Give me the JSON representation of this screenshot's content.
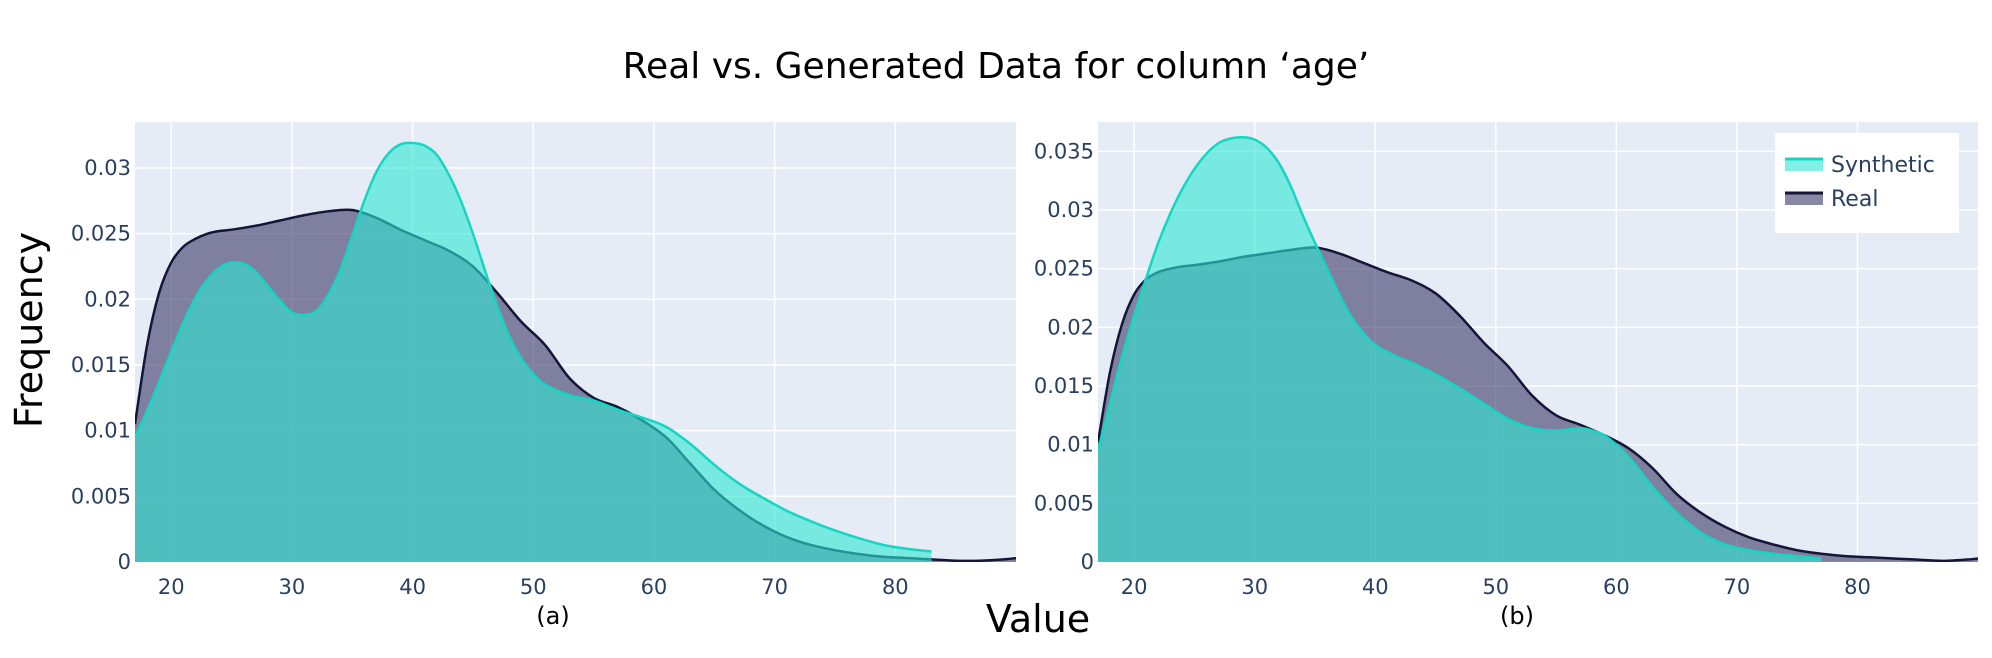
{
  "figure": {
    "title": "Real vs. Generated Data for column ‘age’",
    "ylabel": "Frequency",
    "xlabel": "Value",
    "colors": {
      "synthetic_fill": "#2ee8d4",
      "synthetic_line": "#14d6c2",
      "real_fill": "#3b3868",
      "real_line": "#15153a",
      "plot_bg": "#e5ecf6"
    }
  },
  "chart_data": [
    {
      "type": "area",
      "panel_label": "(a)",
      "xlim": [
        17,
        90
      ],
      "ylim": [
        0,
        0.0335
      ],
      "x_ticks": [
        20,
        30,
        40,
        50,
        60,
        70,
        80
      ],
      "x_tick_labels": [
        "20",
        "30",
        "40",
        "50",
        "60",
        "70",
        "80"
      ],
      "y_ticks": [
        0,
        0.005,
        0.01,
        0.015,
        0.02,
        0.025,
        0.03
      ],
      "y_tick_labels": [
        "0",
        "0.005",
        "0.01",
        "0.015",
        "0.02",
        "0.025",
        "0.03"
      ],
      "legend": false,
      "grid": true,
      "series": [
        {
          "name": "Real",
          "x": [
            17,
            18,
            19,
            20,
            21,
            22,
            23,
            24,
            25,
            27,
            29,
            31,
            33,
            35,
            37,
            39,
            41,
            43,
            45,
            47,
            49,
            51,
            53,
            55,
            57,
            59,
            61,
            63,
            65,
            67,
            69,
            71,
            73,
            75,
            77,
            79,
            81,
            83,
            85,
            87,
            89,
            90
          ],
          "y": [
            0.0105,
            0.0165,
            0.0205,
            0.0228,
            0.024,
            0.0246,
            0.025,
            0.0252,
            0.0253,
            0.0256,
            0.026,
            0.0264,
            0.0267,
            0.0268,
            0.0262,
            0.0253,
            0.0245,
            0.0237,
            0.0225,
            0.0205,
            0.0183,
            0.0165,
            0.014,
            0.0125,
            0.0118,
            0.0108,
            0.0095,
            0.0075,
            0.0055,
            0.004,
            0.0028,
            0.0019,
            0.0013,
            0.0009,
            0.0006,
            0.0004,
            0.0003,
            0.0002,
            0.0001,
            0.0001,
            0.0002,
            0.0003
          ]
        },
        {
          "name": "Synthetic",
          "x": [
            17,
            18,
            19,
            20,
            21,
            22,
            23,
            24,
            25,
            26,
            27,
            28,
            29,
            30,
            31,
            32,
            33,
            34,
            35,
            36,
            37,
            38,
            39,
            40,
            41,
            42,
            43,
            44,
            45,
            46,
            47,
            48,
            49,
            50,
            51,
            53,
            55,
            57,
            59,
            61,
            63,
            65,
            67,
            69,
            71,
            73,
            75,
            77,
            79,
            81,
            83
          ],
          "y": [
            0.0095,
            0.0115,
            0.0137,
            0.016,
            0.0182,
            0.0201,
            0.0215,
            0.0224,
            0.0228,
            0.0227,
            0.0221,
            0.021,
            0.0199,
            0.019,
            0.0188,
            0.0191,
            0.0203,
            0.0222,
            0.0248,
            0.0275,
            0.0297,
            0.0311,
            0.0318,
            0.0319,
            0.0317,
            0.031,
            0.0295,
            0.0275,
            0.025,
            0.0222,
            0.0195,
            0.0172,
            0.0155,
            0.0143,
            0.0135,
            0.0127,
            0.0123,
            0.0116,
            0.011,
            0.0103,
            0.009,
            0.0074,
            0.006,
            0.0049,
            0.0039,
            0.0031,
            0.0024,
            0.0018,
            0.0013,
            0.001,
            0.0008
          ]
        }
      ]
    },
    {
      "type": "area",
      "panel_label": "(b)",
      "xlim": [
        17,
        90
      ],
      "ylim": [
        0,
        0.0375
      ],
      "x_ticks": [
        20,
        30,
        40,
        50,
        60,
        70,
        80
      ],
      "x_tick_labels": [
        "20",
        "30",
        "40",
        "50",
        "60",
        "70",
        "80"
      ],
      "y_ticks": [
        0,
        0.005,
        0.01,
        0.015,
        0.02,
        0.025,
        0.03,
        0.035
      ],
      "y_tick_labels": [
        "0",
        "0.005",
        "0.01",
        "0.015",
        "0.02",
        "0.025",
        "0.03",
        "0.035"
      ],
      "legend": true,
      "legend_position": "top-right",
      "grid": true,
      "series": [
        {
          "name": "Real",
          "x": [
            17,
            18,
            19,
            20,
            21,
            22,
            23,
            24,
            25,
            27,
            29,
            31,
            33,
            35,
            37,
            39,
            41,
            43,
            45,
            47,
            49,
            51,
            53,
            55,
            57,
            59,
            61,
            63,
            65,
            67,
            69,
            71,
            73,
            75,
            77,
            79,
            81,
            83,
            85,
            87,
            89,
            90
          ],
          "y": [
            0.0102,
            0.0162,
            0.0203,
            0.0228,
            0.0241,
            0.0247,
            0.025,
            0.0252,
            0.0253,
            0.0256,
            0.026,
            0.0263,
            0.0266,
            0.0268,
            0.0263,
            0.0255,
            0.0247,
            0.024,
            0.0229,
            0.021,
            0.0187,
            0.0167,
            0.0142,
            0.0125,
            0.0117,
            0.0108,
            0.0097,
            0.008,
            0.0058,
            0.0042,
            0.003,
            0.0021,
            0.0015,
            0.001,
            0.0007,
            0.0005,
            0.0004,
            0.0003,
            0.0002,
            0.0001,
            0.0002,
            0.0003
          ]
        },
        {
          "name": "Synthetic",
          "x": [
            17,
            18,
            19,
            20,
            21,
            22,
            23,
            24,
            25,
            26,
            27,
            28,
            29,
            30,
            31,
            32,
            33,
            34,
            35,
            36,
            37,
            38,
            39,
            40,
            41,
            42,
            43,
            44,
            45,
            47,
            49,
            51,
            53,
            55,
            57,
            58,
            59,
            60,
            61,
            62,
            63,
            65,
            67,
            69,
            71,
            73,
            75,
            77
          ],
          "y": [
            0.0095,
            0.0135,
            0.0175,
            0.021,
            0.0242,
            0.0272,
            0.0297,
            0.0318,
            0.0335,
            0.0348,
            0.0357,
            0.0361,
            0.0362,
            0.036,
            0.0353,
            0.034,
            0.032,
            0.0295,
            0.0272,
            0.025,
            0.0228,
            0.0209,
            0.0195,
            0.0185,
            0.0179,
            0.0174,
            0.017,
            0.0165,
            0.016,
            0.0148,
            0.0135,
            0.0122,
            0.0114,
            0.0112,
            0.0114,
            0.0112,
            0.0108,
            0.01,
            0.009,
            0.0077,
            0.0064,
            0.0042,
            0.0025,
            0.0015,
            0.001,
            0.0007,
            0.0005,
            0.0003
          ]
        }
      ]
    }
  ]
}
